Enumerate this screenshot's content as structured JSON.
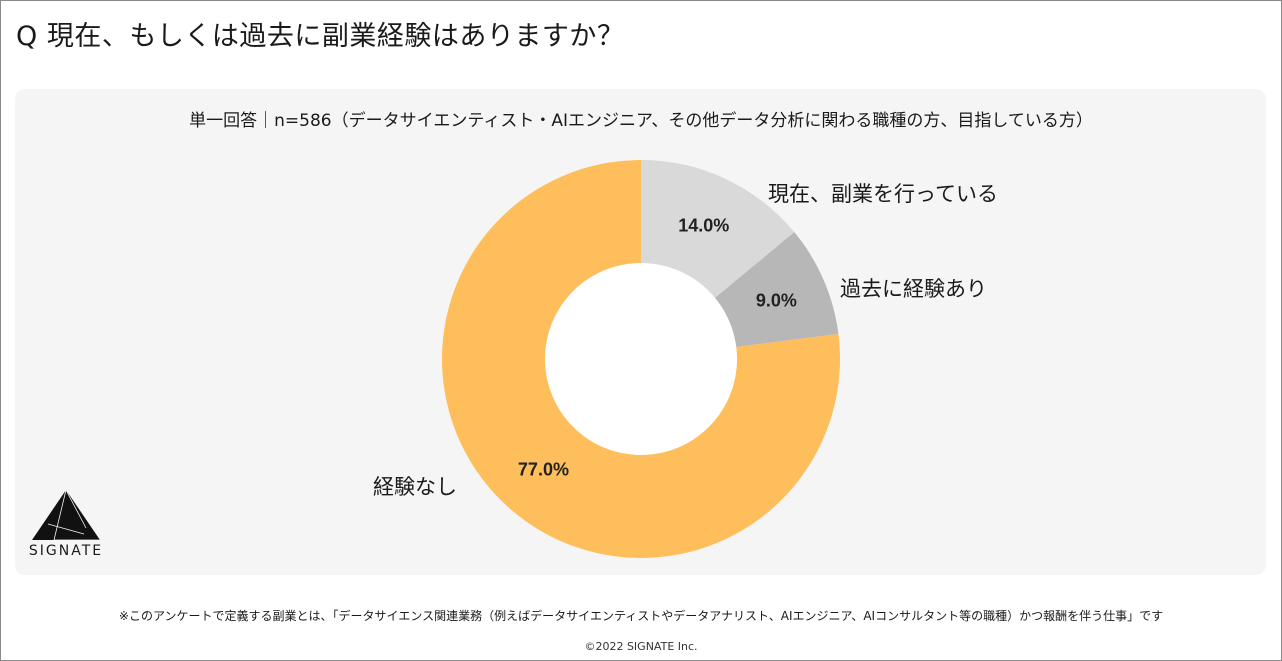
{
  "question": "Q 現在、もしくは過去に副業経験はありますか？",
  "chart_data": {
    "type": "pie",
    "title": "単一回答｜n=586（データサイエンティスト・AIエンジニア、その他データ分析に関わる職種の方、目指している方）",
    "slices": [
      {
        "label": "現在、副業を行っている",
        "value": 14.0,
        "value_label": "14.0%",
        "color": "#d9d9d9"
      },
      {
        "label": "過去に経験あり",
        "value": 9.0,
        "value_label": "9.0%",
        "color": "#b7b7b7"
      },
      {
        "label": "経験なし",
        "value": 77.0,
        "value_label": "77.0%",
        "color": "#ffbe5c"
      }
    ],
    "donut": true
  },
  "logo": {
    "name": "SIGNATE"
  },
  "footnote": "※このアンケートで定義する副業とは、「データサイエンス関連業務（例えばデータサイエンティストやデータアナリスト、AIエンジニア、AIコンサルタント等の職種）かつ報酬を伴う仕事」です",
  "copyright": "©2022 SIGNATE Inc.",
  "colors": {
    "panel": "#f5f5f5",
    "border": "#8a8a8a"
  }
}
